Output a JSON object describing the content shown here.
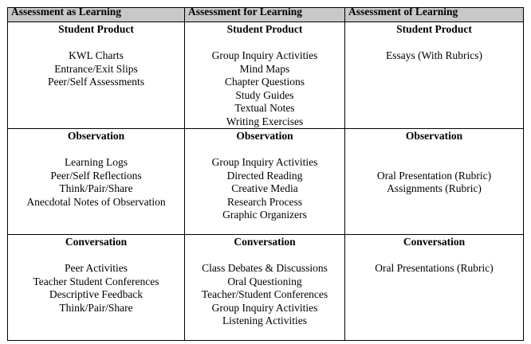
{
  "headers": [
    "Assessment as Learning",
    "Assessment for Learning",
    "Assessment of Learning"
  ],
  "rows": [
    {
      "cells": [
        {
          "title": "Student Product",
          "lines": [
            "",
            "KWL Charts",
            "Entrance/Exit Slips",
            "Peer/Self Assessments"
          ]
        },
        {
          "title": "Student Product",
          "lines": [
            "",
            "Group Inquiry Activities",
            "Mind Maps",
            "Chapter Questions",
            "Study Guides",
            "Textual Notes",
            "Writing Exercises"
          ]
        },
        {
          "title": "Student Product",
          "lines": [
            "",
            "Essays (With Rubrics)"
          ]
        }
      ]
    },
    {
      "cells": [
        {
          "title": "Observation",
          "lines": [
            "",
            "Learning Logs",
            "Peer/Self Reflections",
            "Think/Pair/Share",
            "Anecdotal Notes of Observation"
          ]
        },
        {
          "title": "Observation",
          "lines": [
            "",
            "Group Inquiry Activities",
            "Directed Reading",
            "Creative Media",
            "Research Process",
            "Graphic Organizers"
          ]
        },
        {
          "title": "Observation",
          "lines": [
            "",
            "",
            "Oral Presentation (Rubric)",
            "Assignments (Rubric)"
          ]
        }
      ]
    },
    {
      "cells": [
        {
          "title": "Conversation",
          "lines": [
            "",
            "Peer Activities",
            "Teacher Student Conferences",
            "Descriptive Feedback",
            "Think/Pair/Share"
          ]
        },
        {
          "title": "Conversation",
          "lines": [
            "",
            "Class Debates & Discussions",
            "Oral Questioning",
            "Teacher/Student Conferences",
            "Group Inquiry Activities",
            "Listening Activities"
          ]
        },
        {
          "title": "Conversation",
          "lines": [
            "",
            "Oral Presentations (Rubric)"
          ]
        }
      ]
    }
  ],
  "colors": {
    "header_bg": "#c8c8c8",
    "border": "#000000"
  }
}
